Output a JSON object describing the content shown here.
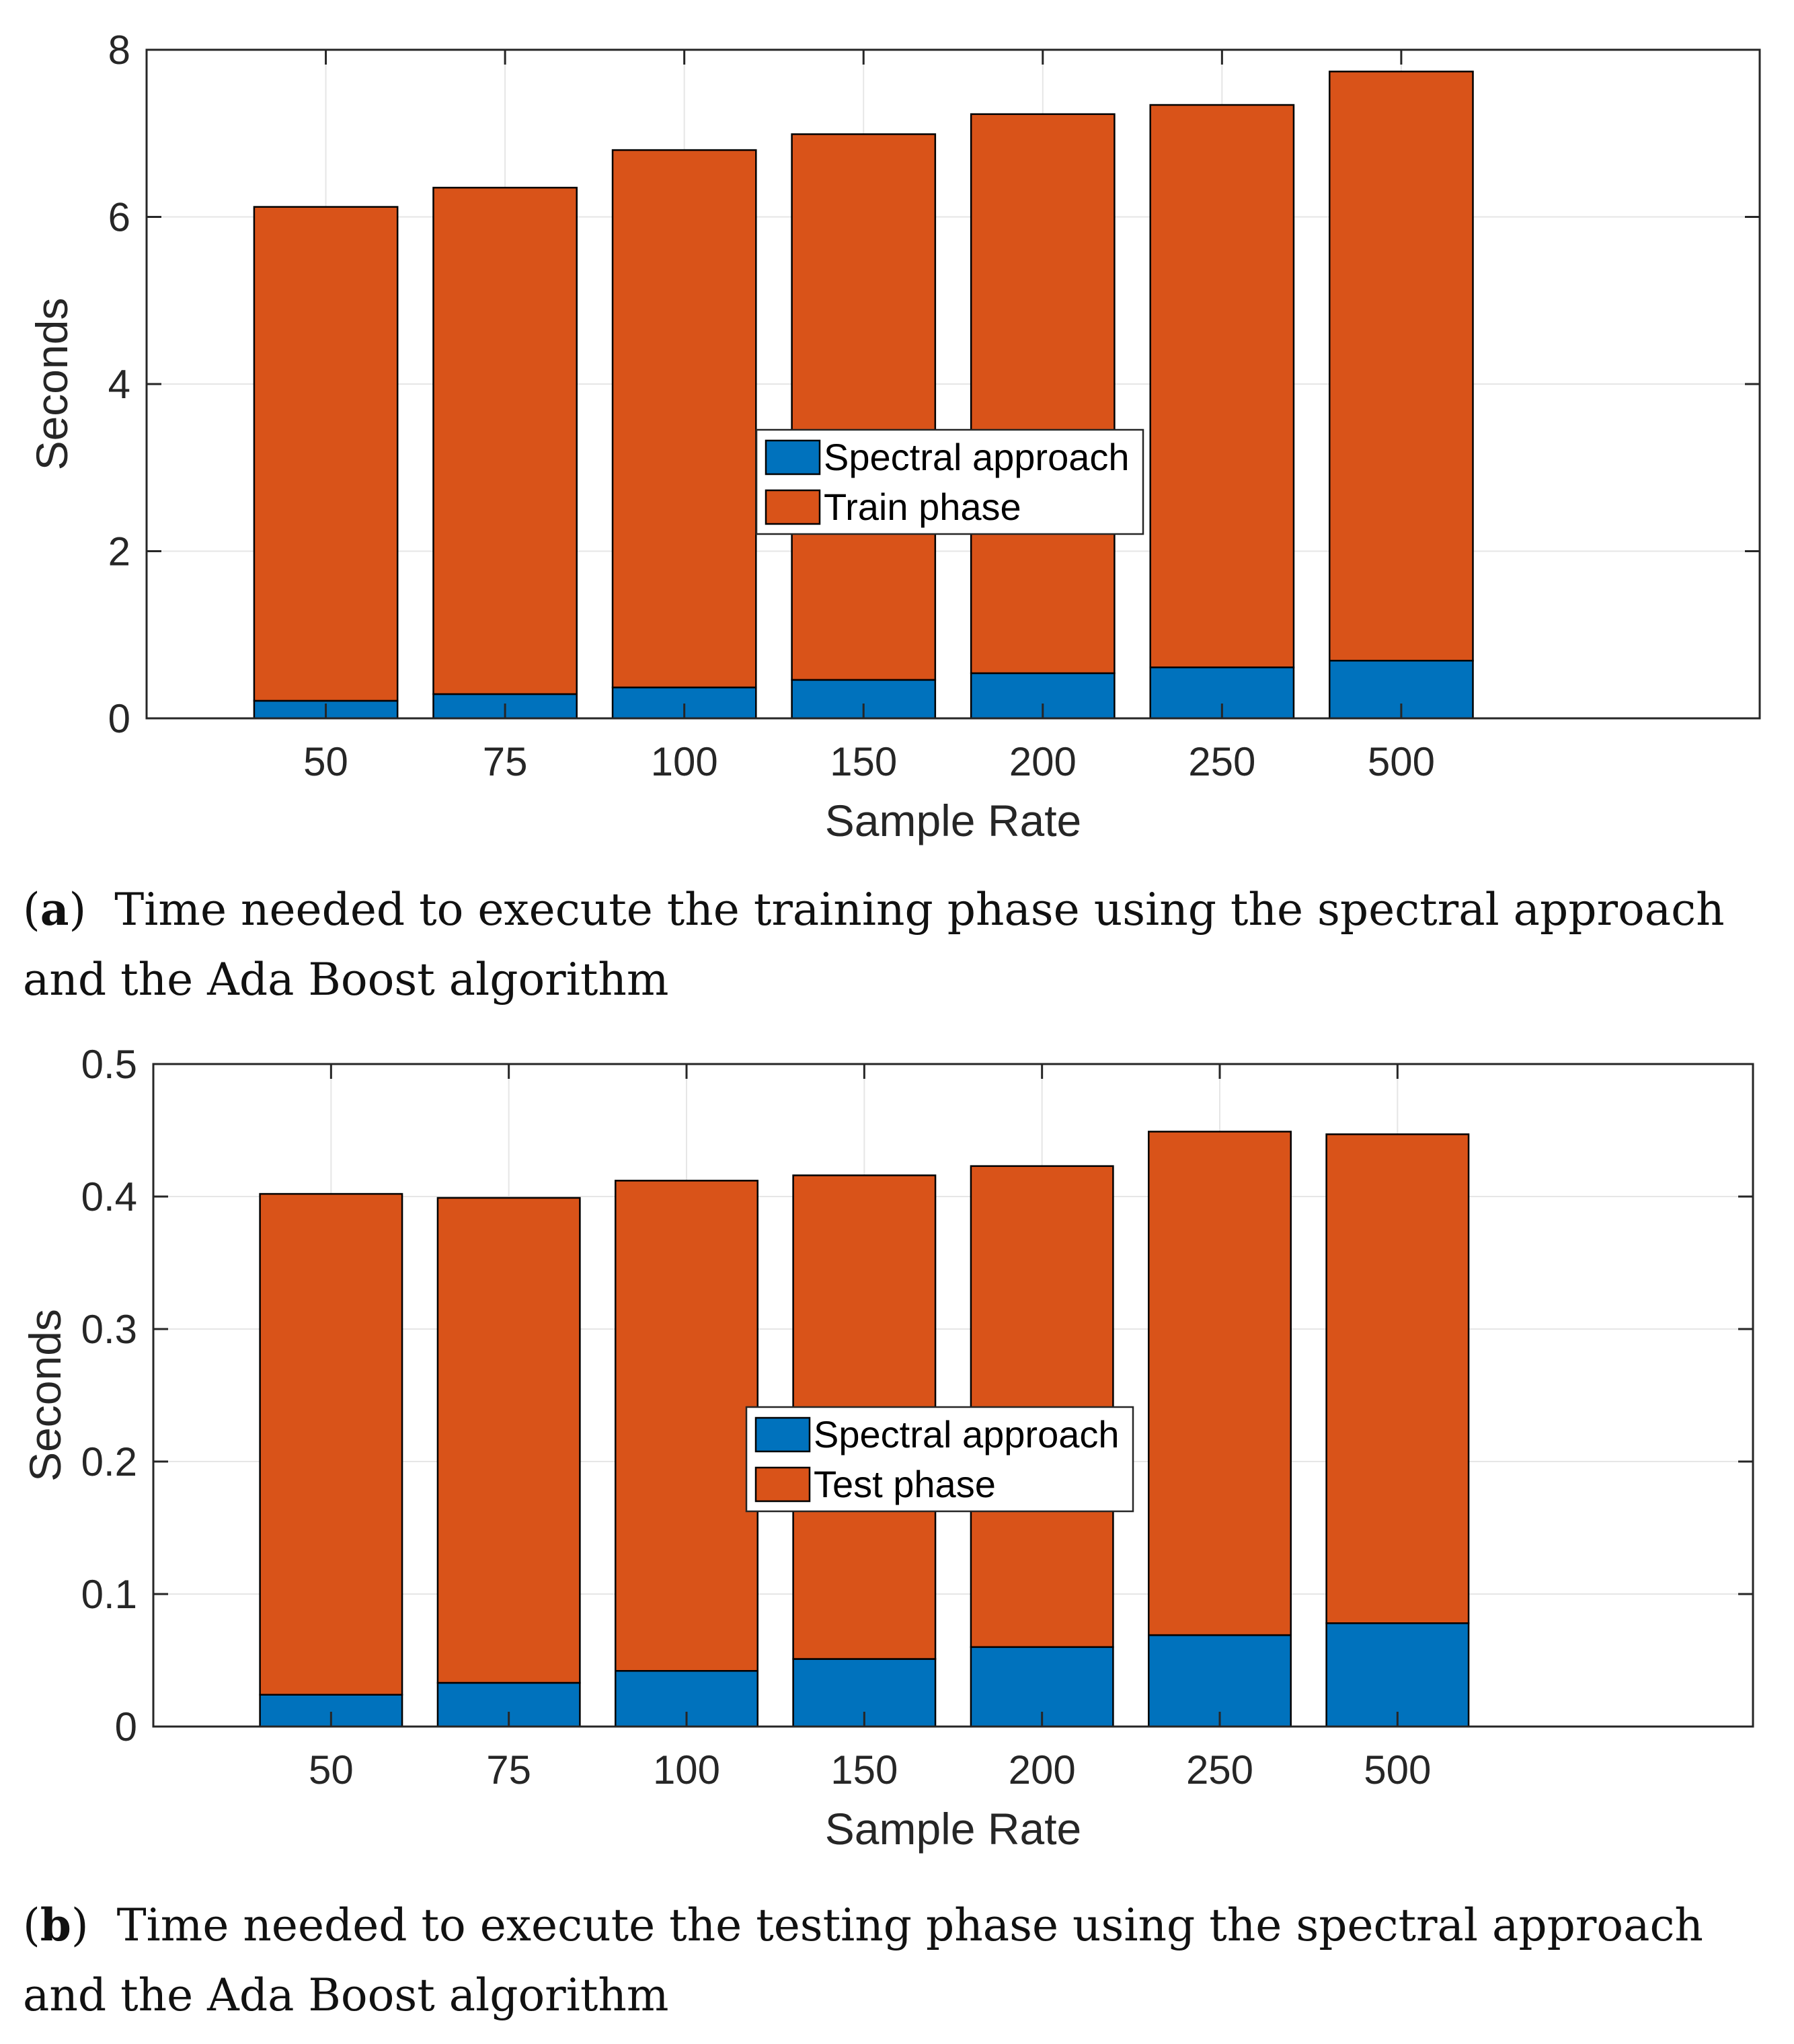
{
  "chart_data": [
    {
      "type": "bar",
      "stacked": true,
      "categories": [
        "50",
        "75",
        "100",
        "150",
        "200",
        "250",
        "500"
      ],
      "series": [
        {
          "name": "Spectral approach",
          "color": "#0072BD",
          "values": [
            0.21,
            0.29,
            0.37,
            0.46,
            0.54,
            0.61,
            0.69
          ]
        },
        {
          "name": "Train phase",
          "color": "#D95319",
          "values": [
            5.91,
            6.06,
            6.43,
            6.53,
            6.69,
            6.73,
            7.05
          ]
        }
      ],
      "totals": [
        6.12,
        6.35,
        6.8,
        6.99,
        7.23,
        7.34,
        7.74
      ],
      "xlabel": "Sample Rate",
      "ylabel": "Seconds",
      "ylim": [
        0,
        8
      ],
      "yticks": [
        "0",
        "2",
        "4",
        "6",
        "8"
      ],
      "grid": true,
      "legend_position": "center",
      "caption_label": "a",
      "caption_text": "Time needed to execute the training phase using the spectral approach and the Ada Boost algorithm"
    },
    {
      "type": "bar",
      "stacked": true,
      "categories": [
        "50",
        "75",
        "100",
        "150",
        "200",
        "250",
        "500"
      ],
      "series": [
        {
          "name": "Spectral approach",
          "color": "#0072BD",
          "values": [
            0.024,
            0.033,
            0.042,
            0.051,
            0.06,
            0.069,
            0.078
          ]
        },
        {
          "name": "Test phase",
          "color": "#D95319",
          "values": [
            0.378,
            0.366,
            0.37,
            0.365,
            0.363,
            0.38,
            0.369
          ]
        }
      ],
      "totals": [
        0.402,
        0.399,
        0.412,
        0.416,
        0.423,
        0.449,
        0.447
      ],
      "xlabel": "Sample Rate",
      "ylabel": "Seconds",
      "ylim": [
        0,
        0.5
      ],
      "yticks": [
        "0",
        "0.1",
        "0.2",
        "0.3",
        "0.4",
        "0.5"
      ],
      "grid": true,
      "legend_position": "center",
      "caption_label": "b",
      "caption_text": "Time needed to execute the testing phase using the spectral approach and the Ada Boost algorithm"
    }
  ]
}
